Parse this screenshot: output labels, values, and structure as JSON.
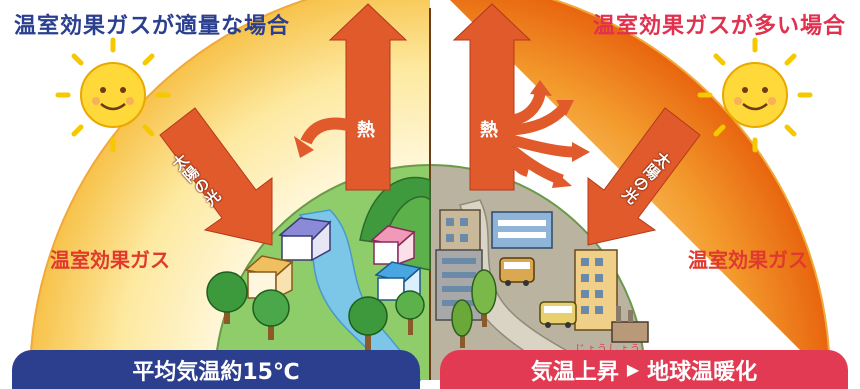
{
  "titles": {
    "left": "温室効果ガスが適量な場合",
    "right": "温室効果ガスが多い場合"
  },
  "labels": {
    "greenhouse_gas_left": "温室効果ガス",
    "greenhouse_gas_right": "温室効果ガス",
    "heat_left": "熱",
    "heat_right": "熱",
    "sunlight_left": "太陽の光",
    "sunlight_right": "太陽の光"
  },
  "bottom": {
    "left_text": "平均気温約15℃",
    "right_text_a": "気温上昇",
    "right_arrow": "▶",
    "right_text_b": "地球温暖化",
    "ruby": "じょうしょう"
  },
  "colors": {
    "title_left": "#2a3f8f",
    "title_right": "#e0314f",
    "arrow": "#e05a2c",
    "bar_left": "#2b3f8e",
    "bar_right": "#e13a52"
  },
  "icons": [
    "sun-icon",
    "house-icon",
    "building-icon",
    "bus-icon",
    "tree-icon",
    "factory-icon"
  ]
}
